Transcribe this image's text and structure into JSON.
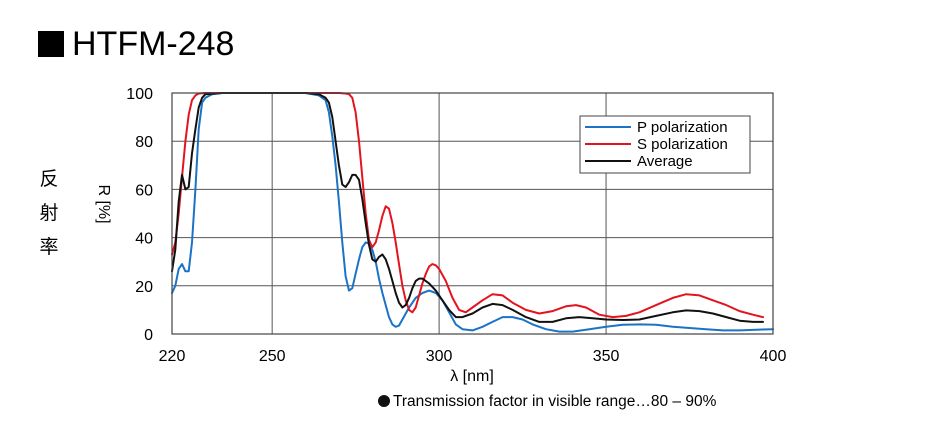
{
  "title": "HTFM-248",
  "side_label": [
    "反",
    "射",
    "率"
  ],
  "footnote": "Transmission factor in visible range…80 – 90%",
  "colors": {
    "p": "#1a73c6",
    "s": "#e3141e",
    "avg": "#111111",
    "grid": "#555555"
  },
  "chart_data": {
    "type": "line",
    "title": "HTFM-248",
    "xlabel": "λ [nm]",
    "ylabel": "R [%]",
    "xlim": [
      220,
      400
    ],
    "ylim": [
      0,
      100
    ],
    "xticks": [
      220,
      250,
      300,
      350,
      400
    ],
    "yticks": [
      0,
      20,
      40,
      60,
      80,
      100
    ],
    "grid": true,
    "legend": "top-right",
    "series": [
      {
        "name": "P polarization",
        "color": "#1a73c6",
        "points": [
          [
            220,
            17
          ],
          [
            221,
            20
          ],
          [
            222,
            27
          ],
          [
            223,
            29
          ],
          [
            224,
            26
          ],
          [
            225,
            26
          ],
          [
            226,
            38
          ],
          [
            227,
            60
          ],
          [
            228,
            85
          ],
          [
            229,
            96
          ],
          [
            230,
            98
          ],
          [
            232,
            99.5
          ],
          [
            235,
            100
          ],
          [
            240,
            100
          ],
          [
            250,
            100
          ],
          [
            260,
            100
          ],
          [
            264,
            99
          ],
          [
            266,
            97
          ],
          [
            267,
            92
          ],
          [
            268,
            82
          ],
          [
            269,
            70
          ],
          [
            270,
            55
          ],
          [
            271,
            38
          ],
          [
            272,
            24
          ],
          [
            273,
            18
          ],
          [
            274,
            19
          ],
          [
            275,
            25
          ],
          [
            276,
            31
          ],
          [
            277,
            36
          ],
          [
            278,
            38
          ],
          [
            279,
            37.5
          ],
          [
            280,
            35
          ],
          [
            281,
            30
          ],
          [
            282,
            23
          ],
          [
            283,
            17
          ],
          [
            284,
            12
          ],
          [
            285,
            7
          ],
          [
            286,
            4
          ],
          [
            287,
            3
          ],
          [
            288,
            3.5
          ],
          [
            289,
            6
          ],
          [
            291,
            11
          ],
          [
            293,
            15
          ],
          [
            295,
            17
          ],
          [
            297,
            18
          ],
          [
            299,
            17
          ],
          [
            301,
            14
          ],
          [
            303,
            9
          ],
          [
            305,
            4
          ],
          [
            307,
            2
          ],
          [
            310,
            1.5
          ],
          [
            313,
            3
          ],
          [
            316,
            5
          ],
          [
            319,
            7
          ],
          [
            322,
            7
          ],
          [
            325,
            6
          ],
          [
            328,
            4
          ],
          [
            332,
            2
          ],
          [
            336,
            1
          ],
          [
            340,
            1
          ],
          [
            345,
            2
          ],
          [
            350,
            3
          ],
          [
            355,
            3.8
          ],
          [
            360,
            4
          ],
          [
            365,
            3.8
          ],
          [
            370,
            3
          ],
          [
            375,
            2.5
          ],
          [
            380,
            2
          ],
          [
            385,
            1.5
          ],
          [
            390,
            1.5
          ],
          [
            395,
            1.8
          ],
          [
            400,
            2
          ]
        ]
      },
      {
        "name": "S polarization",
        "color": "#e3141e",
        "points": [
          [
            220,
            33
          ],
          [
            221,
            38
          ],
          [
            222,
            50
          ],
          [
            223,
            65
          ],
          [
            224,
            80
          ],
          [
            225,
            91
          ],
          [
            226,
            97
          ],
          [
            227,
            99
          ],
          [
            228,
            99.8
          ],
          [
            230,
            100
          ],
          [
            240,
            100
          ],
          [
            250,
            100
          ],
          [
            260,
            100
          ],
          [
            270,
            100
          ],
          [
            272,
            99.8
          ],
          [
            273,
            99.5
          ],
          [
            274,
            98
          ],
          [
            275,
            92
          ],
          [
            276,
            80
          ],
          [
            277,
            65
          ],
          [
            278,
            50
          ],
          [
            279,
            39
          ],
          [
            280,
            36
          ],
          [
            281,
            38
          ],
          [
            282,
            43
          ],
          [
            283,
            49
          ],
          [
            284,
            53
          ],
          [
            285,
            52
          ],
          [
            286,
            46
          ],
          [
            287,
            38
          ],
          [
            288,
            29
          ],
          [
            289,
            20
          ],
          [
            290,
            14
          ],
          [
            291,
            10
          ],
          [
            292,
            9
          ],
          [
            293,
            11
          ],
          [
            294,
            16
          ],
          [
            295,
            21
          ],
          [
            296,
            25
          ],
          [
            297,
            28
          ],
          [
            298,
            29
          ],
          [
            299,
            28.5
          ],
          [
            300,
            27
          ],
          [
            302,
            22
          ],
          [
            304,
            15
          ],
          [
            306,
            10
          ],
          [
            308,
            9
          ],
          [
            310,
            11
          ],
          [
            313,
            14
          ],
          [
            316,
            16.5
          ],
          [
            319,
            16
          ],
          [
            322,
            13
          ],
          [
            326,
            10
          ],
          [
            330,
            8.5
          ],
          [
            334,
            9.5
          ],
          [
            338,
            11.5
          ],
          [
            341,
            12
          ],
          [
            344,
            11
          ],
          [
            348,
            8
          ],
          [
            352,
            7
          ],
          [
            356,
            7.5
          ],
          [
            360,
            9
          ],
          [
            365,
            12
          ],
          [
            370,
            15
          ],
          [
            374,
            16.5
          ],
          [
            378,
            16
          ],
          [
            382,
            14
          ],
          [
            386,
            12
          ],
          [
            390,
            9.5
          ],
          [
            394,
            8
          ],
          [
            397,
            7
          ]
        ]
      },
      {
        "name": "Average",
        "color": "#111111",
        "points": [
          [
            220,
            26
          ],
          [
            221,
            35
          ],
          [
            222,
            55
          ],
          [
            223,
            66
          ],
          [
            224,
            60
          ],
          [
            225,
            61
          ],
          [
            226,
            75
          ],
          [
            227,
            85
          ],
          [
            228,
            94
          ],
          [
            229,
            98
          ],
          [
            230,
            99.5
          ],
          [
            235,
            100
          ],
          [
            240,
            100
          ],
          [
            250,
            100
          ],
          [
            260,
            100
          ],
          [
            264,
            99.5
          ],
          [
            266,
            98
          ],
          [
            267,
            96
          ],
          [
            268,
            90
          ],
          [
            269,
            80
          ],
          [
            270,
            70
          ],
          [
            271,
            62
          ],
          [
            272,
            61
          ],
          [
            273,
            63
          ],
          [
            274,
            66
          ],
          [
            275,
            66
          ],
          [
            276,
            64
          ],
          [
            277,
            56
          ],
          [
            278,
            46
          ],
          [
            279,
            37
          ],
          [
            280,
            31
          ],
          [
            281,
            30
          ],
          [
            282,
            32
          ],
          [
            283,
            33
          ],
          [
            284,
            31
          ],
          [
            285,
            27
          ],
          [
            286,
            22
          ],
          [
            287,
            17
          ],
          [
            288,
            13
          ],
          [
            289,
            11
          ],
          [
            290,
            12
          ],
          [
            291,
            15
          ],
          [
            292,
            19
          ],
          [
            293,
            22
          ],
          [
            294,
            23
          ],
          [
            295,
            23
          ],
          [
            297,
            21
          ],
          [
            299,
            18
          ],
          [
            301,
            14
          ],
          [
            303,
            10
          ],
          [
            305,
            7
          ],
          [
            307,
            7
          ],
          [
            310,
            8.5
          ],
          [
            313,
            11
          ],
          [
            316,
            12.5
          ],
          [
            319,
            12
          ],
          [
            322,
            10
          ],
          [
            326,
            7
          ],
          [
            330,
            5
          ],
          [
            334,
            5
          ],
          [
            338,
            6.5
          ],
          [
            342,
            7
          ],
          [
            346,
            6.5
          ],
          [
            350,
            6
          ],
          [
            355,
            5.8
          ],
          [
            360,
            6
          ],
          [
            365,
            7.5
          ],
          [
            370,
            9
          ],
          [
            374,
            9.8
          ],
          [
            378,
            9.5
          ],
          [
            382,
            8.5
          ],
          [
            386,
            7
          ],
          [
            390,
            5.5
          ],
          [
            394,
            5
          ],
          [
            397,
            5
          ]
        ]
      }
    ]
  }
}
